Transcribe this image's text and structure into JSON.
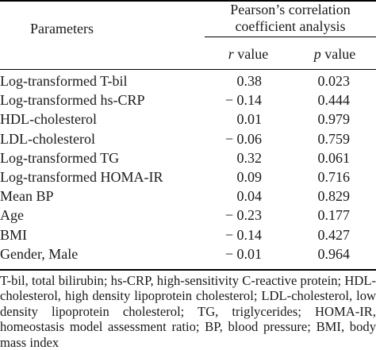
{
  "header": {
    "parameters_label": "Parameters",
    "group_label": "Pearson’s correlation coefficient analysis",
    "r_label": "r",
    "r_suffix": " value",
    "p_label": "p",
    "p_suffix": " value"
  },
  "rows": [
    {
      "parameter": "Log-transformed T-bil",
      "r": "0.38",
      "p": "0.023"
    },
    {
      "parameter": "Log-transformed hs-CRP",
      "r": "− 0.14",
      "p": "0.444"
    },
    {
      "parameter": "HDL-cholesterol",
      "r": "0.01",
      "p": "0.979"
    },
    {
      "parameter": "LDL-cholesterol",
      "r": "− 0.06",
      "p": "0.759"
    },
    {
      "parameter": "Log-transformed TG",
      "r": "0.32",
      "p": "0.061"
    },
    {
      "parameter": "Log-transformed HOMA-IR",
      "r": "0.09",
      "p": "0.716"
    },
    {
      "parameter": "Mean BP",
      "r": "0.04",
      "p": "0.829"
    },
    {
      "parameter": "Age",
      "r": "− 0.23",
      "p": "0.177"
    },
    {
      "parameter": "BMI",
      "r": "− 0.14",
      "p": "0.427"
    },
    {
      "parameter": "Gender, Male",
      "r": "− 0.01",
      "p": "0.964"
    }
  ],
  "footnote": "T-bil, total bilirubin; hs-CRP, high-sensitivity C-reactive protein; HDL-cholesterol, high density lipoprotein cholesterol; LDL-cholesterol, low density lipoprotein cholesterol; TG, triglycerides; HOMA-IR, homeostasis model assessment ratio; BP, blood pressure; BMI, body mass index"
}
